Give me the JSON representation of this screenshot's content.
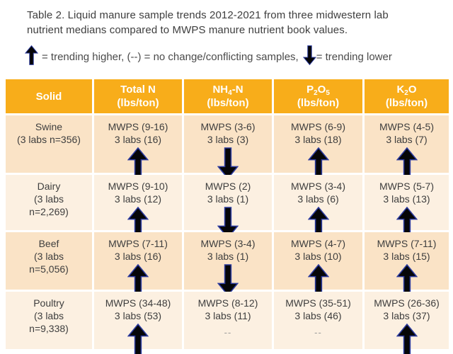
{
  "title": {
    "line1": "Table 2. Liquid manure sample trends 2012-2021 from three midwestern lab",
    "line2": "nutrient medians compared to MWPS manure nutrient book values."
  },
  "legend": {
    "up_arrow_icon": "trend-up-arrow-icon",
    "up_text": "= trending higher, (--) = no change/conflicting samples,",
    "down_arrow_icon": "trend-down-arrow-icon",
    "down_text": "= trending lower"
  },
  "colors": {
    "header_bg": "#F8AD1A",
    "header_text": "#FFFFFF",
    "row_dark": "#FAE3C6",
    "row_light": "#FCF0E1",
    "cell_text": "#3E3E3E",
    "arrow_fill": "#060608",
    "arrow_stroke": "#2B3A9E",
    "dash_text": "#9A9A9A"
  },
  "table": {
    "columns": [
      {
        "parts": [
          [
            "Solid",
            false
          ]
        ],
        "sub": ""
      },
      {
        "parts": [
          [
            "Total N",
            false
          ]
        ],
        "sub": "(lbs/ton)"
      },
      {
        "parts": [
          [
            "NH",
            false
          ],
          [
            "4",
            true
          ],
          [
            "-N",
            false
          ]
        ],
        "sub": "(lbs/ton)"
      },
      {
        "parts": [
          [
            "P",
            false
          ],
          [
            "2",
            true
          ],
          [
            "O",
            false
          ],
          [
            "5",
            true
          ]
        ],
        "sub": "(lbs/ton)"
      },
      {
        "parts": [
          [
            "K",
            false
          ],
          [
            "2",
            true
          ],
          [
            "O",
            false
          ]
        ],
        "sub": "(lbs/ton)"
      }
    ],
    "rows": [
      {
        "solid_lines": [
          "Swine",
          "(3 labs n=356)"
        ],
        "cells": [
          {
            "mwps": "MWPS (9-16)",
            "labs": "3 labs (16)",
            "trend": "up"
          },
          {
            "mwps": "MWPS (3-6)",
            "labs": "3 labs (3)",
            "trend": "down"
          },
          {
            "mwps": "MWPS (6-9)",
            "labs": "3 labs (18)",
            "trend": "up"
          },
          {
            "mwps": "MWPS (4-5)",
            "labs": "3 labs (7)",
            "trend": "up"
          }
        ]
      },
      {
        "solid_lines": [
          "Dairy",
          "(3 labs",
          "n=2,269)"
        ],
        "cells": [
          {
            "mwps": "MWPS (9-10)",
            "labs": "3 labs (12)",
            "trend": "up"
          },
          {
            "mwps": "MWPS (2)",
            "labs": "3 labs (1)",
            "trend": "down"
          },
          {
            "mwps": "MWPS (3-4)",
            "labs": "3 labs (6)",
            "trend": "up"
          },
          {
            "mwps": "MWPS (5-7)",
            "labs": "3 labs (13)",
            "trend": "up"
          }
        ]
      },
      {
        "solid_lines": [
          "Beef",
          "(3 labs",
          "n=5,056)"
        ],
        "cells": [
          {
            "mwps": "MWPS (7-11)",
            "labs": "3 labs (16)",
            "trend": "up"
          },
          {
            "mwps": "MWPS (3-4)",
            "labs": "3 labs (1)",
            "trend": "down"
          },
          {
            "mwps": "MWPS (4-7)",
            "labs": "3 labs (10)",
            "trend": "up"
          },
          {
            "mwps": "MWPS (7-11)",
            "labs": "3 labs (15)",
            "trend": "up"
          }
        ]
      },
      {
        "solid_lines": [
          "Poultry",
          "(3 labs",
          "n=9,338)"
        ],
        "cells": [
          {
            "mwps": "MWPS (34-48)",
            "labs": "3 labs (53)",
            "trend": "up"
          },
          {
            "mwps": "MWPS (8-12)",
            "labs": "3 labs (11)",
            "trend": "dash",
            "dash_label": "--"
          },
          {
            "mwps": "MWPS (35-51)",
            "labs": "3 labs (46)",
            "trend": "dash",
            "dash_label": "--"
          },
          {
            "mwps": "MWPS (26-36)",
            "labs": "3 labs (37)",
            "trend": "up"
          }
        ]
      }
    ]
  }
}
